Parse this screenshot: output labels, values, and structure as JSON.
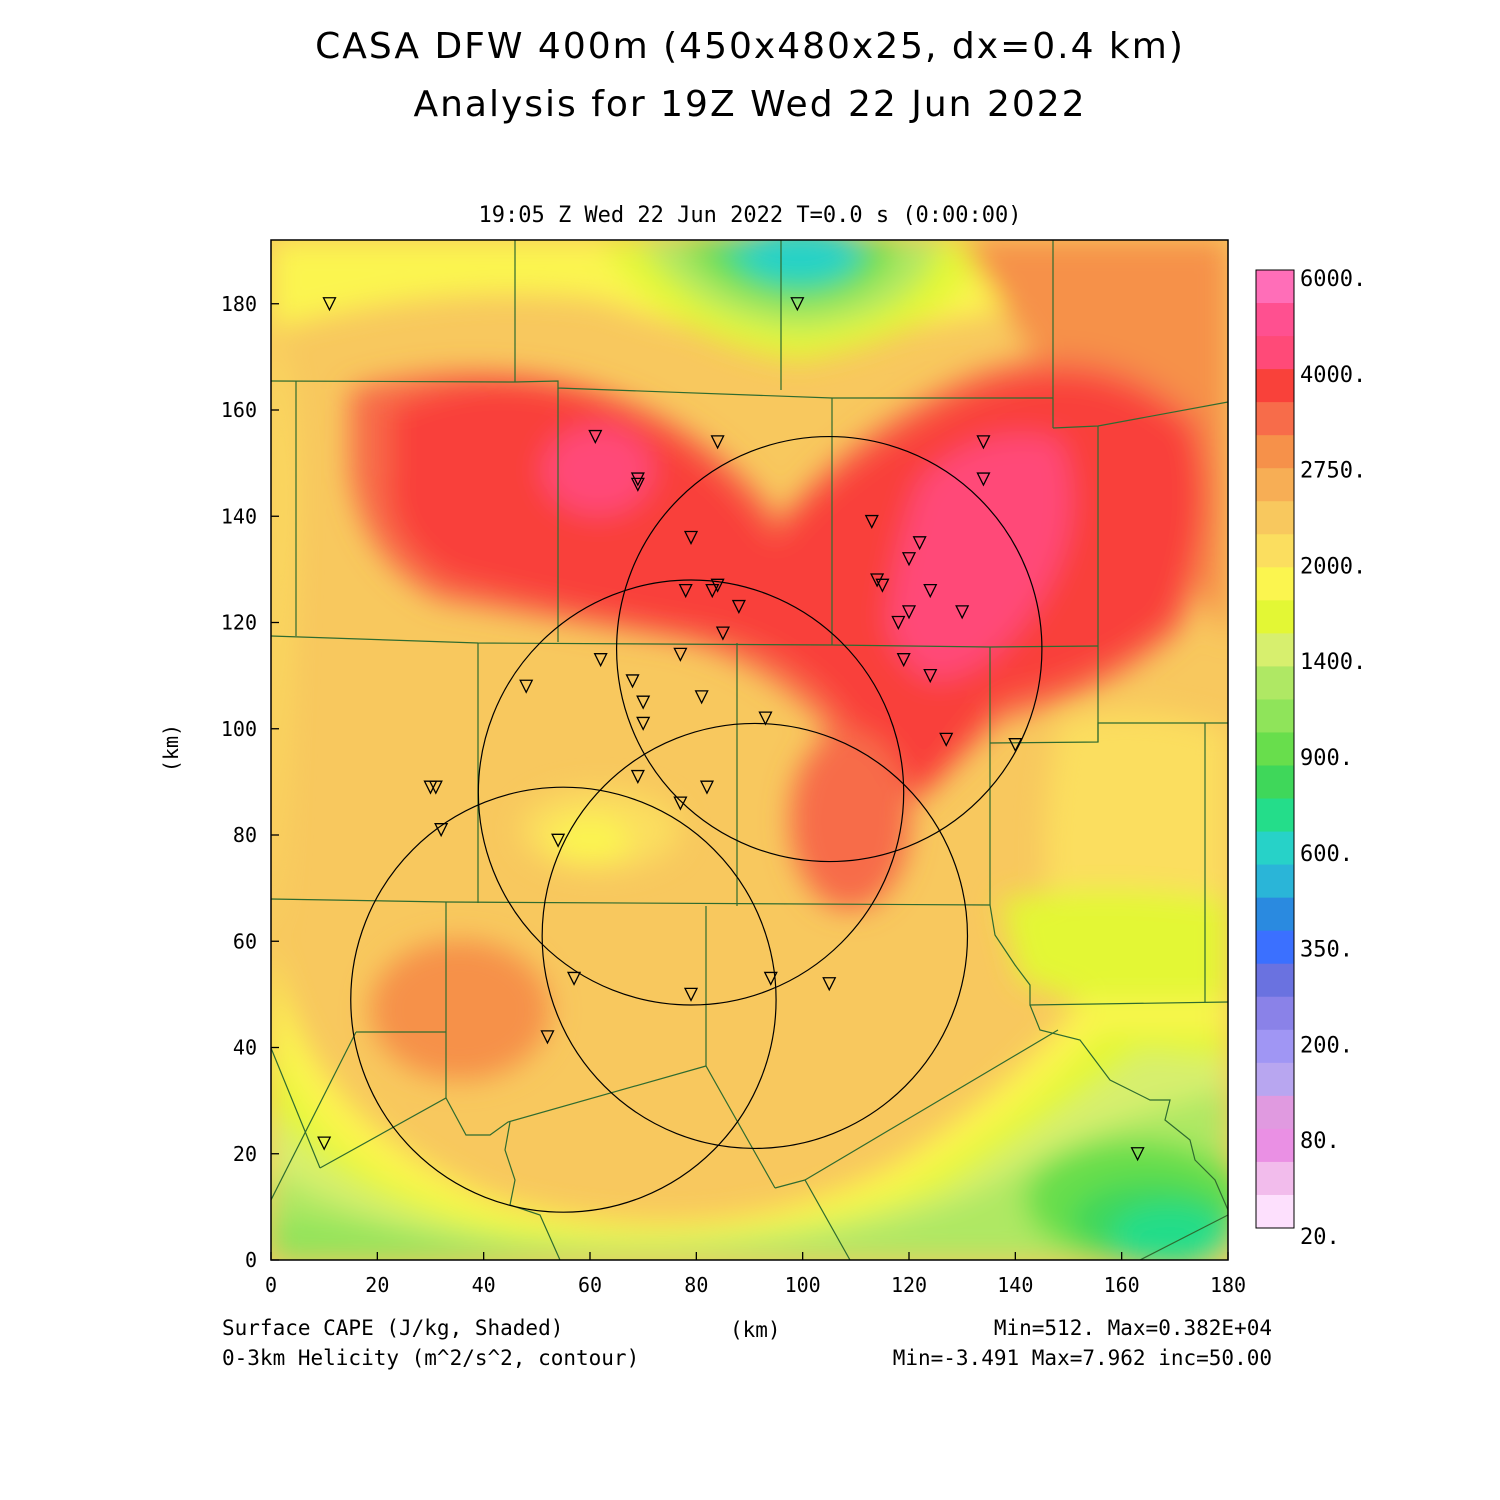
{
  "title": {
    "line1": "CASA DFW 400m (450x480x25, dx=0.4 km)",
    "line2": "Analysis for 19Z Wed 22 Jun 2022"
  },
  "timestamp": "19:05 Z Wed 22 Jun 2022   T=0.0 s (0:00:00)",
  "axes": {
    "xlabel": "(km)",
    "ylabel": "(km)",
    "xticks": [
      "0",
      "20",
      "40",
      "60",
      "80",
      "100",
      "120",
      "140",
      "160",
      "180"
    ],
    "yticks": [
      "0",
      "20",
      "40",
      "60",
      "80",
      "100",
      "120",
      "140",
      "160",
      "180"
    ],
    "xrange": [
      0,
      180
    ],
    "yrange": [
      0,
      192
    ]
  },
  "colorbar": {
    "labels": [
      "6000.",
      "4000.",
      "2750.",
      "2000.",
      "1400.",
      "900.",
      "600.",
      "350.",
      "200.",
      "80.",
      "20."
    ],
    "colors": [
      "#ff6eb8",
      "#ff5090",
      "#ff4a78",
      "#f9413a",
      "#f76c4a",
      "#f6914a",
      "#f7ae55",
      "#f8c85e",
      "#fbde5f",
      "#fbf54f",
      "#e3f735",
      "#d7ef6e",
      "#afe864",
      "#8fe45a",
      "#68de4c",
      "#3fd75a",
      "#24dd8a",
      "#27d2c8",
      "#2ab5d8",
      "#2a8ae0",
      "#3b70ff",
      "#6a72e0",
      "#8a82e8",
      "#a096f4",
      "#b8a6f0",
      "#e09ae0",
      "#ea90e4",
      "#f2bcec",
      "#fde0fd"
    ]
  },
  "footer": {
    "left1": "Surface CAPE (J/kg, Shaded)",
    "left2": "0-3km Helicity (m^2/s^2, contour)",
    "center": "(km)",
    "right1": "Min=512. Max=0.382E+04",
    "right2": "Min=-3.491 Max=7.962 inc=50.00"
  },
  "map_data": {
    "field": "Surface CAPE",
    "units": "J/kg",
    "min": 512,
    "max": 3820,
    "helicity_min": -3.491,
    "helicity_max": 7.962,
    "helicity_inc": 50.0,
    "radar_circles_km": [
      {
        "cx": 105,
        "cy": 115,
        "r": 40
      },
      {
        "cx": 79,
        "cy": 88,
        "r": 40
      },
      {
        "cx": 91,
        "cy": 61,
        "r": 40
      },
      {
        "cx": 55,
        "cy": 49,
        "r": 40
      }
    ],
    "stations_km": [
      [
        11,
        180
      ],
      [
        99,
        180
      ],
      [
        61,
        155
      ],
      [
        84,
        154
      ],
      [
        69,
        147
      ],
      [
        69,
        146
      ],
      [
        134,
        154
      ],
      [
        134,
        147
      ],
      [
        113,
        139
      ],
      [
        79,
        136
      ],
      [
        122,
        135
      ],
      [
        120,
        132
      ],
      [
        114,
        128
      ],
      [
        115,
        127
      ],
      [
        84,
        127
      ],
      [
        83,
        126
      ],
      [
        78,
        126
      ],
      [
        124,
        126
      ],
      [
        88,
        123
      ],
      [
        130,
        122
      ],
      [
        120,
        122
      ],
      [
        118,
        120
      ],
      [
        85,
        118
      ],
      [
        62,
        113
      ],
      [
        77,
        114
      ],
      [
        119,
        113
      ],
      [
        124,
        110
      ],
      [
        68,
        109
      ],
      [
        48,
        108
      ],
      [
        70,
        105
      ],
      [
        81,
        106
      ],
      [
        70,
        101
      ],
      [
        93,
        102
      ],
      [
        127,
        98
      ],
      [
        140,
        97
      ],
      [
        69,
        91
      ],
      [
        30,
        89
      ],
      [
        31,
        89
      ],
      [
        82,
        89
      ],
      [
        77,
        86
      ],
      [
        32,
        81
      ],
      [
        54,
        79
      ],
      [
        57,
        53
      ],
      [
        94,
        53
      ],
      [
        105,
        52
      ],
      [
        79,
        50
      ],
      [
        52,
        42
      ],
      [
        10,
        22
      ],
      [
        163,
        20
      ]
    ]
  }
}
